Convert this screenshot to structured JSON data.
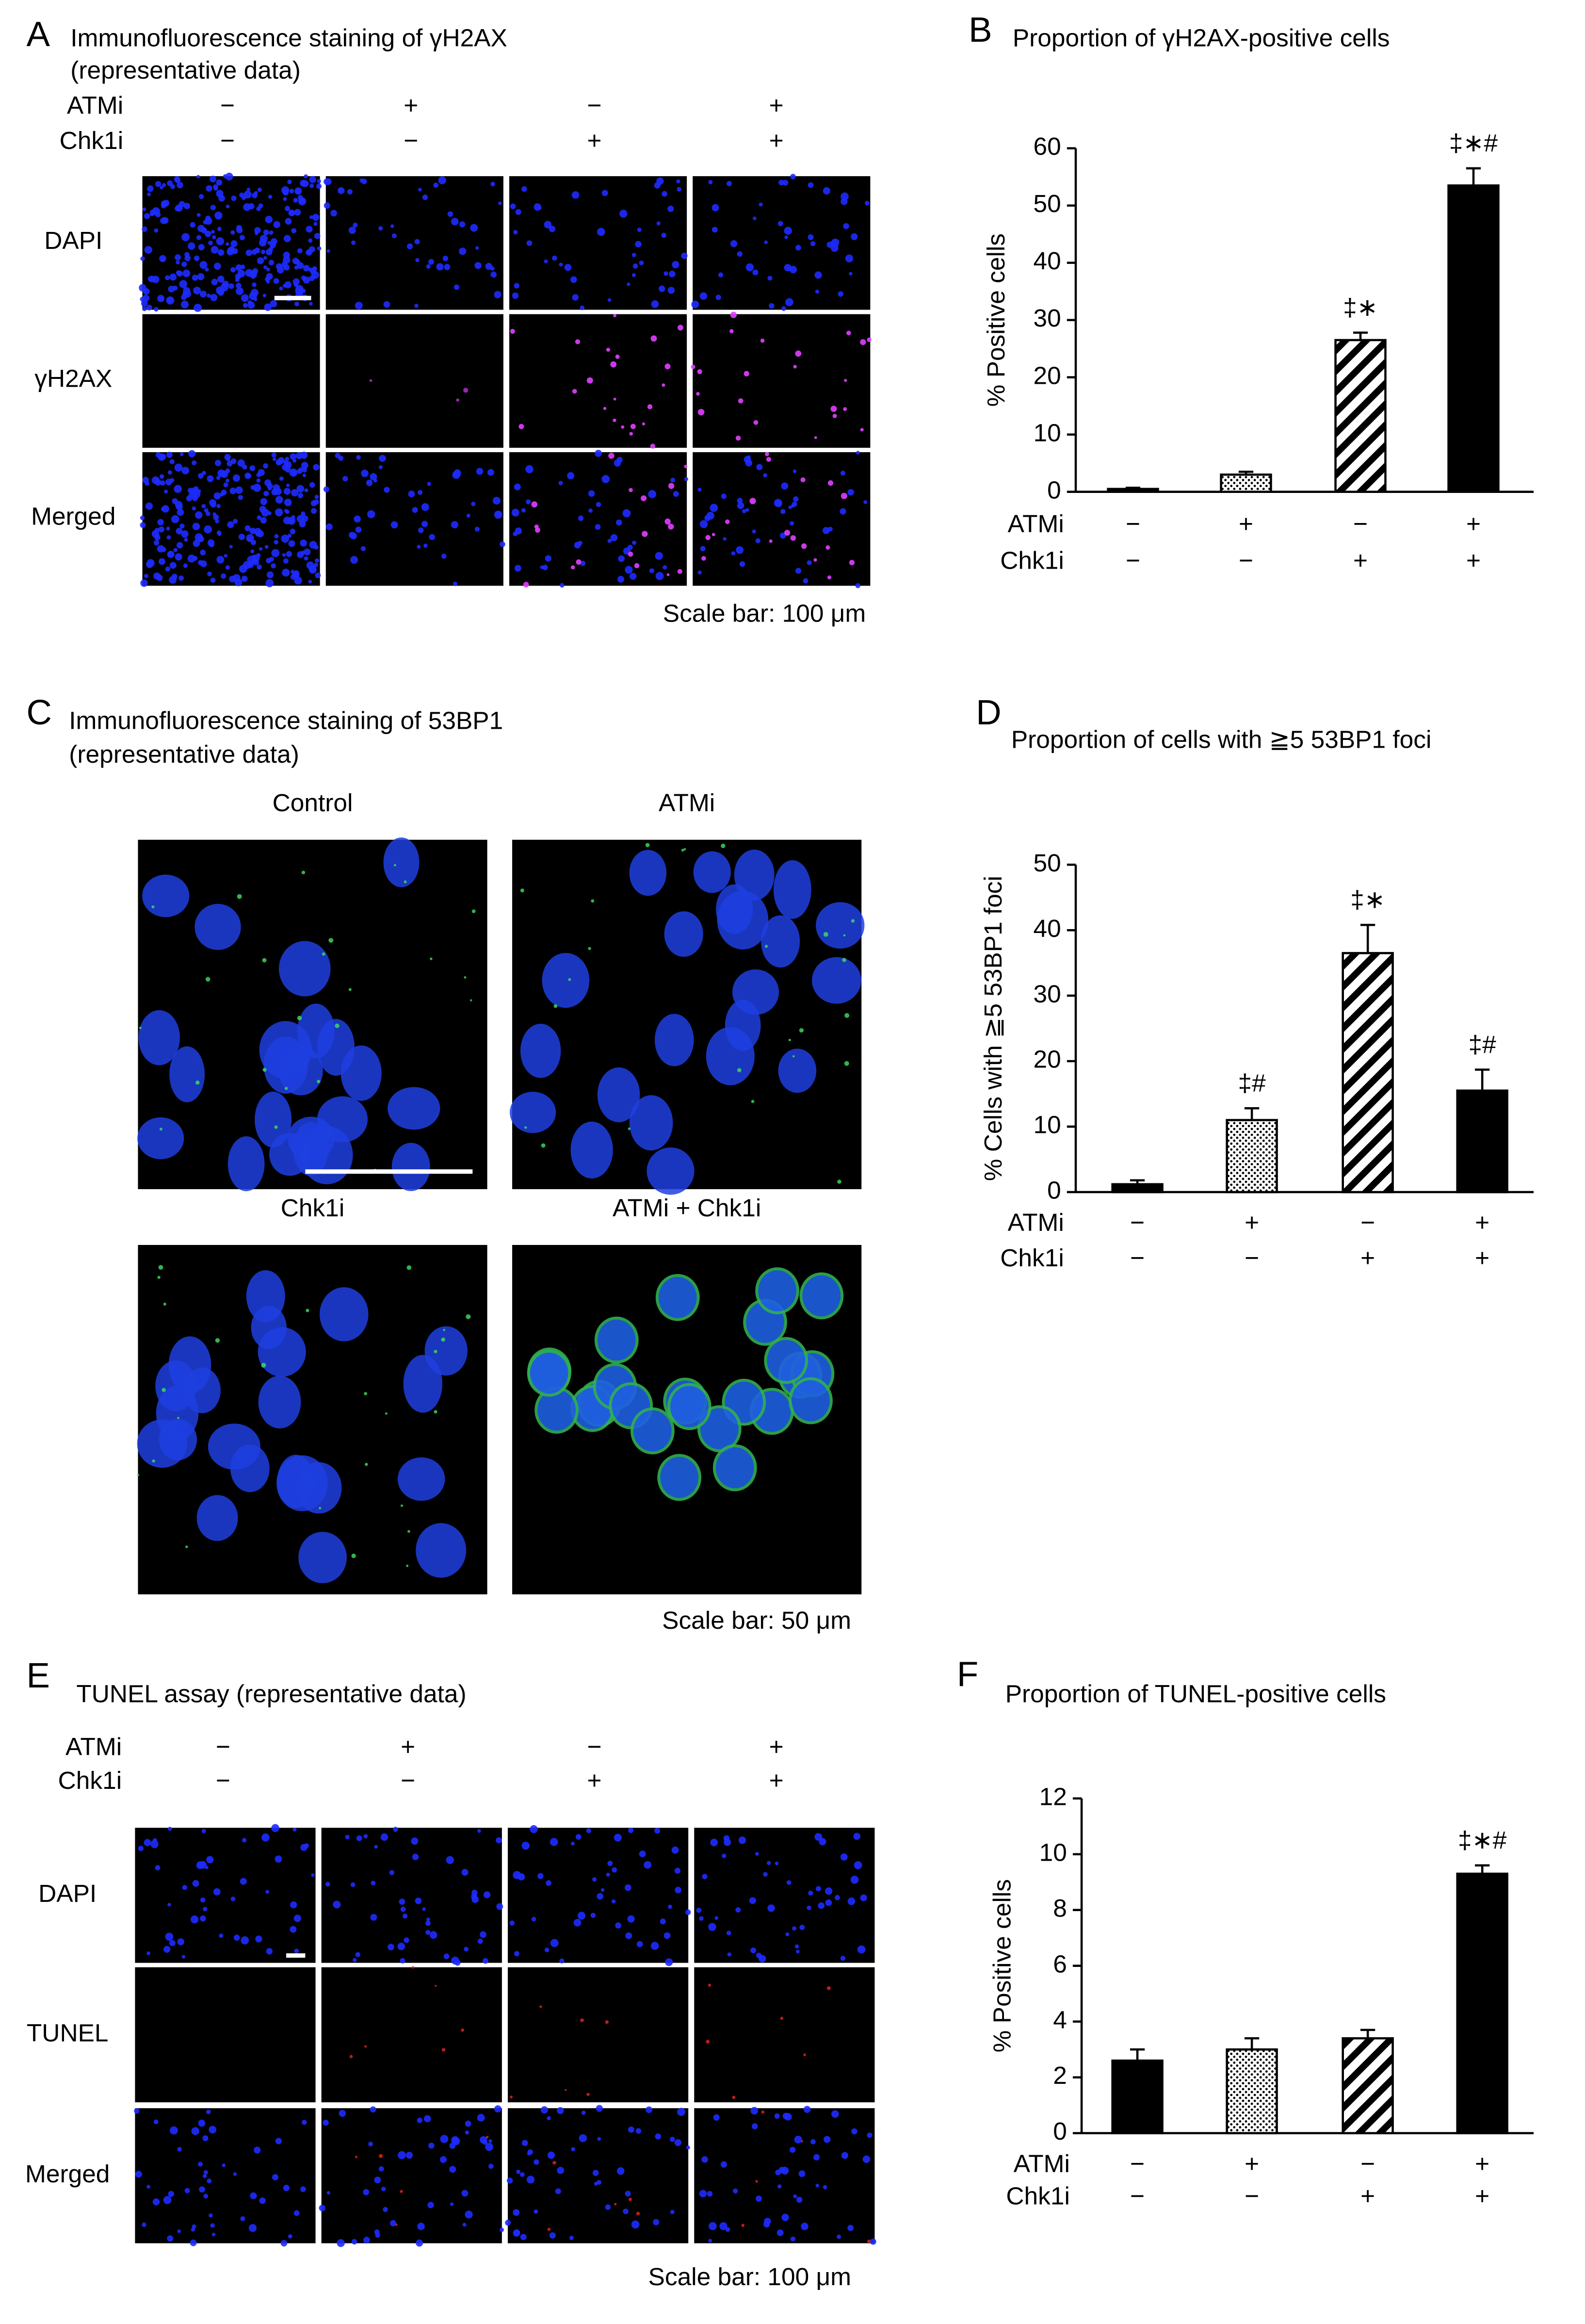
{
  "image_panels": [
    {
      "label": "A",
      "title_lines": [
        "Immunofluorescence staining of γH2AX",
        "(representative data)"
      ],
      "conditions": [
        {
          "name": "ATMi",
          "marks": [
            "−",
            "+",
            "−",
            "+"
          ]
        },
        {
          "name": "Chk1i",
          "marks": [
            "−",
            "−",
            "+",
            "+"
          ]
        }
      ],
      "row_labels": [
        "DAPI",
        "γH2AX",
        "Merged"
      ],
      "scale_bar": "Scale bar: 100 μm"
    },
    {
      "label": "C",
      "title_lines": [
        "Immunofluorescence staining of 53BP1",
        "(representative data)"
      ],
      "image_labels": [
        "Control",
        "ATMi",
        "Chk1i",
        "ATMi + Chk1i"
      ],
      "scale_bar": "Scale bar: 50 μm"
    },
    {
      "label": "E",
      "title_lines": [
        "TUNEL assay (representative data)"
      ],
      "conditions": [
        {
          "name": "ATMi",
          "marks": [
            "−",
            "+",
            "−",
            "+"
          ]
        },
        {
          "name": "Chk1i",
          "marks": [
            "−",
            "−",
            "+",
            "+"
          ]
        }
      ],
      "row_labels": [
        "DAPI",
        "TUNEL",
        "Merged"
      ],
      "scale_bar": "Scale bar: 100 μm"
    }
  ],
  "chart_data": [
    {
      "type": "bar",
      "label": "B",
      "title": "Proportion of γH2AX-positive cells",
      "ylabel": "%  Positive cells",
      "values": [
        0.5,
        3,
        26.5,
        53.5
      ],
      "errors": [
        0.2,
        0.5,
        1.3,
        3
      ],
      "annotations": [
        null,
        null,
        "‡∗",
        "‡∗#"
      ],
      "patterns": [
        "black",
        "dots",
        "hatch",
        "black"
      ],
      "ylim": [
        0,
        60
      ],
      "yticks": [
        0,
        10,
        20,
        30,
        40,
        50,
        60
      ],
      "conditions": [
        {
          "name": "ATMi",
          "marks": [
            "−",
            "+",
            "−",
            "+"
          ]
        },
        {
          "name": "Chk1i",
          "marks": [
            "−",
            "−",
            "+",
            "+"
          ]
        }
      ]
    },
    {
      "type": "bar",
      "label": "D",
      "title": "Proportion of cells with ≧5 53BP1 foci",
      "ylabel": "% Cells with ≧5 53BP1 foci",
      "values": [
        1.2,
        11,
        36.5,
        15.5
      ],
      "errors": [
        0.6,
        1.8,
        4.3,
        3.2
      ],
      "annotations": [
        null,
        "‡#",
        "‡∗",
        "‡#"
      ],
      "patterns": [
        "black",
        "dots",
        "hatch",
        "black"
      ],
      "ylim": [
        0,
        50
      ],
      "yticks": [
        0,
        10,
        20,
        30,
        40,
        50
      ],
      "conditions": [
        {
          "name": "ATMi",
          "marks": [
            "−",
            "+",
            "−",
            "+"
          ]
        },
        {
          "name": "Chk1i",
          "marks": [
            "−",
            "−",
            "+",
            "+"
          ]
        }
      ]
    },
    {
      "type": "bar",
      "label": "F",
      "title": "Proportion of TUNEL-positive cells",
      "ylabel": "% Positive cells",
      "values": [
        2.6,
        3.0,
        3.4,
        9.3
      ],
      "errors": [
        0.4,
        0.4,
        0.3,
        0.3
      ],
      "annotations": [
        null,
        null,
        null,
        "‡∗#"
      ],
      "patterns": [
        "black",
        "dots",
        "hatch",
        "black"
      ],
      "ylim": [
        0,
        12
      ],
      "yticks": [
        0,
        2,
        4,
        6,
        8,
        10,
        12
      ],
      "conditions": [
        {
          "name": "ATMi",
          "marks": [
            "−",
            "+",
            "−",
            "+"
          ]
        },
        {
          "name": "Chk1i",
          "marks": [
            "−",
            "−",
            "+",
            "+"
          ]
        }
      ]
    }
  ]
}
